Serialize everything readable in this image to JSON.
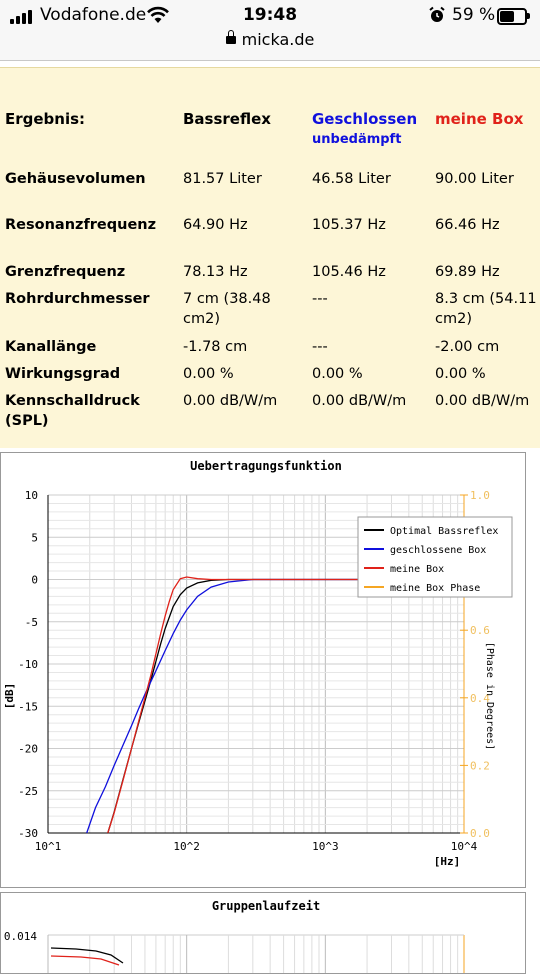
{
  "status_bar": {
    "carrier": "Vodafone.de",
    "time": "19:48",
    "battery_percent": "59 %",
    "url": "micka.de"
  },
  "results": {
    "header": {
      "label": "Ergebnis:",
      "col1": "Bassreflex",
      "col2": "Geschlossen",
      "col2_sub": "unbedämpft",
      "col3": "meine Box"
    },
    "rows": [
      {
        "label": "Gehäusevolumen",
        "v1": "81.57 Liter",
        "v2": "46.58 Liter",
        "v3": "90.00 Liter"
      },
      {
        "label": "Resonanzfrequenz",
        "v1": "64.90 Hz",
        "v2": "105.37 Hz",
        "v3": "66.46 Hz"
      },
      {
        "label": "Grenzfrequenz",
        "v1": "78.13 Hz",
        "v2": "105.46 Hz",
        "v3": "69.89 Hz"
      },
      {
        "label": "Rohrdurchmesser",
        "v1": "7 cm (38.48",
        "v1b": "cm2)",
        "v2": "---",
        "v3": "8.3 cm (54.11",
        "v3b": "cm2)"
      },
      {
        "label": "Kanallänge",
        "v1": "-1.78 cm",
        "v2": "---",
        "v3": "-2.00 cm"
      },
      {
        "label": "Wirkungsgrad",
        "v1": "0.00 %",
        "v2": "0.00 %",
        "v3": "0.00 %"
      },
      {
        "label": "Kennschalldruck",
        "label_b": "(SPL)",
        "v1": "0.00 dB/W/m",
        "v2": "0.00 dB/W/m",
        "v3": "0.00 dB/W/m"
      }
    ],
    "colors": {
      "background": "#fdf6d7",
      "geschlossen": "#1010dd",
      "meine_box": "#e0221a"
    }
  },
  "chart_data": [
    {
      "type": "line",
      "title": "Uebertragungsfunktion",
      "ylabel": "[dB]",
      "xlabel": "[Hz]",
      "y2label": "[Phase in Degrees]",
      "x_scale": "log",
      "xlim": [
        10,
        10000
      ],
      "ylim": [
        -30,
        10
      ],
      "y2lim": [
        0.0,
        1.0
      ],
      "x_ticks": [
        "10^1",
        "10^2",
        "10^3",
        "10^4"
      ],
      "y_ticks": [
        "10",
        "5",
        "0",
        "-5",
        "-10",
        "-15",
        "-20",
        "-25",
        "-30"
      ],
      "y2_ticks": [
        "1.0",
        "0.8",
        "0.6",
        "0.4",
        "0.2",
        "0.0"
      ],
      "legend_position": "top-right",
      "grid": true,
      "series": [
        {
          "name": "Optimal Bassreflex",
          "color": "#000000",
          "x": [
            27,
            30,
            35,
            40,
            45,
            50,
            55,
            60,
            65,
            70,
            80,
            90,
            100,
            120,
            150,
            200,
            300,
            600,
            1000,
            2000
          ],
          "y": [
            -30,
            -27.5,
            -23.5,
            -20,
            -17,
            -14.4,
            -12,
            -9.7,
            -7.6,
            -5.8,
            -3.2,
            -1.8,
            -1,
            -0.4,
            -0.1,
            0,
            0,
            0,
            0,
            0
          ]
        },
        {
          "name": "geschlossene Box",
          "color": "#1010dd",
          "x": [
            19,
            22,
            26,
            30,
            35,
            40,
            45,
            50,
            60,
            70,
            80,
            90,
            100,
            120,
            150,
            200,
            300,
            600,
            1000,
            2000
          ],
          "y": [
            -30,
            -27,
            -24.5,
            -22,
            -19.5,
            -17.3,
            -15.3,
            -13.6,
            -10.8,
            -8.4,
            -6.4,
            -4.8,
            -3.6,
            -2,
            -0.9,
            -0.3,
            0,
            0,
            0,
            0
          ]
        },
        {
          "name": "meine Box",
          "color": "#e0221a",
          "x": [
            27,
            30,
            35,
            40,
            45,
            50,
            55,
            60,
            65,
            70,
            75,
            80,
            90,
            100,
            120,
            150,
            200,
            300,
            600,
            1000,
            2000
          ],
          "y": [
            -30,
            -27.6,
            -23.6,
            -20,
            -16.8,
            -14,
            -11.4,
            -8.8,
            -6.4,
            -4.3,
            -2.6,
            -1.2,
            0.1,
            0.3,
            0.1,
            0,
            0,
            0,
            0,
            0,
            0
          ]
        },
        {
          "name": "meine Box Phase",
          "color": "#f5a623",
          "x": [],
          "y": []
        }
      ]
    },
    {
      "type": "line",
      "title": "Gruppenlaufzeit",
      "y_ticks": [
        "0.014"
      ],
      "series": []
    }
  ]
}
